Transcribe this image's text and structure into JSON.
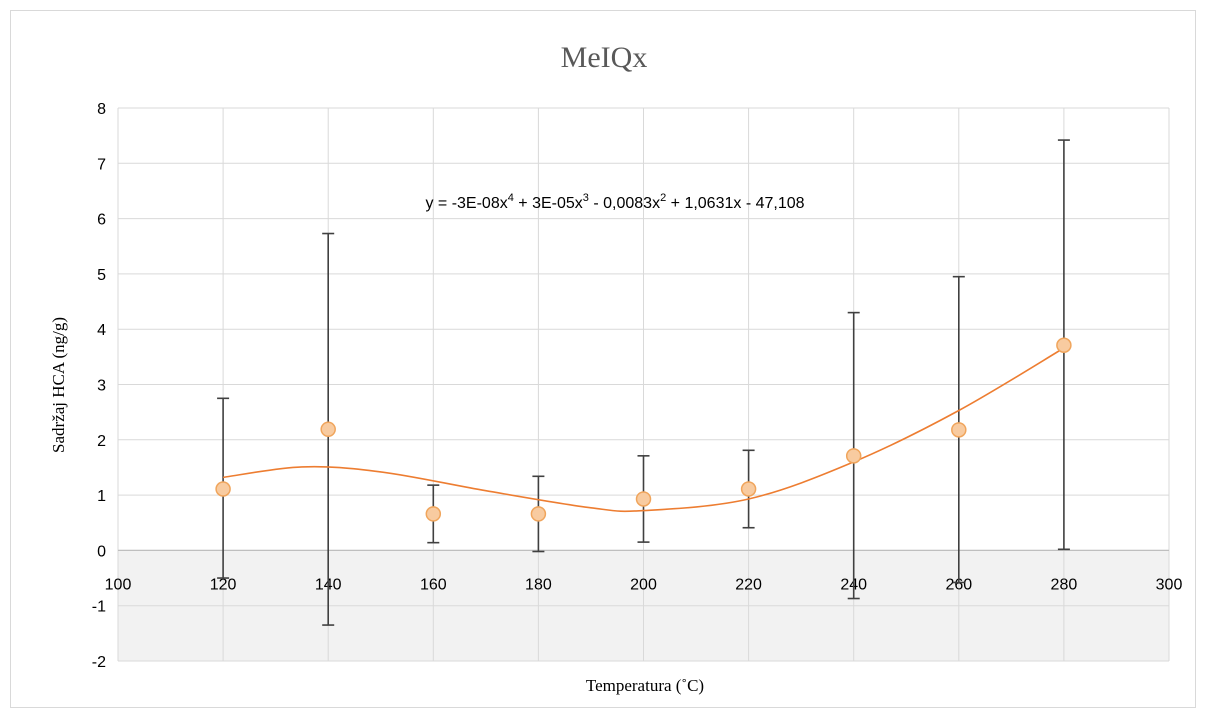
{
  "chart_data": {
    "type": "scatter",
    "title": "MeIQx",
    "xlabel": "Temperatura (˚C)",
    "ylabel": "Sadržaj HCA (ng/g)",
    "xlim": [
      100,
      300
    ],
    "ylim": [
      -2,
      8
    ],
    "x_ticks": [
      "100",
      "120",
      "140",
      "160",
      "180",
      "200",
      "220",
      "240",
      "260",
      "280",
      "300"
    ],
    "y_ticks": [
      "-2",
      "-1",
      "0",
      "1",
      "2",
      "3",
      "4",
      "5",
      "6",
      "7",
      "8"
    ],
    "grid": true,
    "equation_parts": [
      "y = -3E-08x",
      "4",
      " + 3E-05x",
      "3",
      " - 0,0083x",
      "2",
      " + 1,0631x - 47,108"
    ],
    "trendline": {
      "type": "polynomial",
      "order": 4,
      "coefficients": [
        -3e-08,
        3e-05,
        -0.0083,
        1.0631,
        -47.108
      ]
    },
    "series": [
      {
        "x": [
          120,
          140,
          160,
          180,
          200,
          220,
          240,
          260,
          280
        ],
        "y": [
          1.11,
          2.19,
          0.66,
          0.66,
          0.93,
          1.11,
          1.71,
          2.18,
          3.71
        ],
        "error_low": [
          -0.5,
          -1.35,
          0.14,
          -0.02,
          0.15,
          0.41,
          -0.87,
          -0.58,
          0.02
        ],
        "error_high": [
          2.75,
          5.73,
          1.18,
          1.34,
          1.71,
          1.81,
          4.3,
          4.95,
          7.42
        ]
      }
    ],
    "colors": {
      "marker_fill": "#f8cba0",
      "marker_stroke": "#f0a55c",
      "trendline": "#ed7d31",
      "error_bar": "#404040",
      "grid": "#d9d9d9",
      "plot_bg": "#f2f2f2"
    }
  }
}
